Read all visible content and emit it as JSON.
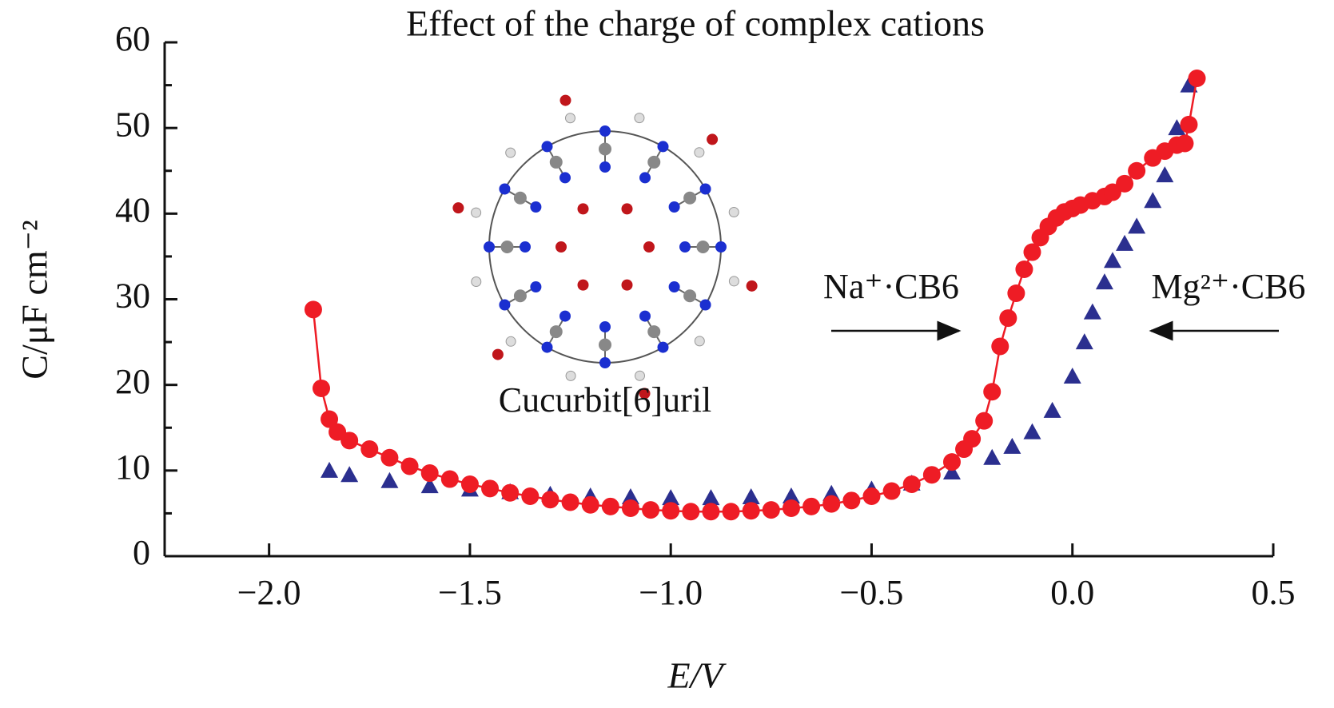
{
  "chart_data": {
    "type": "scatter",
    "title": "Effect of the charge of complex cations",
    "x_label": "E/V",
    "y_label": "C/μF cm⁻²",
    "xlim": [
      -2.26,
      0.5
    ],
    "ylim": [
      0,
      60
    ],
    "xticks": [
      {
        "value": -2,
        "label": "−2.0"
      },
      {
        "value": -1.5,
        "label": "−1.5"
      },
      {
        "value": -1,
        "label": "−1.0"
      },
      {
        "value": -0.5,
        "label": "−0.5"
      },
      {
        "value": 0,
        "label": "0.0"
      },
      0.5
    ],
    "yticks": [
      0,
      10,
      20,
      30,
      40,
      50,
      60
    ],
    "inset_caption": "Cucurbit[6]uril",
    "series": [
      {
        "name": "Mg²⁺·CB6",
        "color": "#2b2f8f",
        "marker": "triangle",
        "line": false,
        "x": [
          -1.85,
          -1.8,
          -1.7,
          -1.6,
          -1.5,
          -1.4,
          -1.3,
          -1.2,
          -1.1,
          -1.0,
          -0.9,
          -0.8,
          -0.7,
          -0.6,
          -0.5,
          -0.4,
          -0.3,
          -0.2,
          -0.15,
          -0.1,
          -0.05,
          0,
          0.03,
          0.05,
          0.08,
          0.1,
          0.13,
          0.16,
          0.2,
          0.23,
          0.26,
          0.29
        ],
        "values": [
          10,
          9.5,
          8.8,
          8.2,
          7.8,
          7.5,
          7.2,
          7,
          6.9,
          6.8,
          6.8,
          6.9,
          7,
          7.3,
          7.8,
          8.5,
          9.8,
          11.5,
          12.8,
          14.5,
          17,
          21,
          25,
          28.5,
          32,
          34.5,
          36.5,
          38.5,
          41.5,
          44.5,
          50,
          55
        ]
      },
      {
        "name": "Na⁺·CB6",
        "color": "#ee1c25",
        "marker": "circle",
        "line": true,
        "x": [
          -1.89,
          -1.87,
          -1.85,
          -1.83,
          -1.8,
          -1.75,
          -1.7,
          -1.65,
          -1.6,
          -1.55,
          -1.5,
          -1.45,
          -1.4,
          -1.35,
          -1.3,
          -1.25,
          -1.2,
          -1.15,
          -1.1,
          -1.05,
          -1.0,
          -0.95,
          -0.9,
          -0.85,
          -0.8,
          -0.75,
          -0.7,
          -0.65,
          -0.6,
          -0.55,
          -0.5,
          -0.45,
          -0.4,
          -0.35,
          -0.3,
          -0.27,
          -0.25,
          -0.22,
          -0.2,
          -0.18,
          -0.16,
          -0.14,
          -0.12,
          -0.1,
          -0.08,
          -0.06,
          -0.04,
          -0.02,
          0,
          0.02,
          0.05,
          0.08,
          0.1,
          0.13,
          0.16,
          0.2,
          0.23,
          0.26,
          0.28,
          0.29,
          0.31
        ],
        "values": [
          28.8,
          19.6,
          16,
          14.5,
          13.5,
          12.5,
          11.5,
          10.5,
          9.7,
          9,
          8.4,
          7.9,
          7.4,
          7,
          6.6,
          6.3,
          6,
          5.8,
          5.6,
          5.4,
          5.3,
          5.2,
          5.2,
          5.2,
          5.3,
          5.4,
          5.6,
          5.8,
          6.1,
          6.5,
          7,
          7.6,
          8.4,
          9.5,
          11,
          12.5,
          13.7,
          15.8,
          19.2,
          24.5,
          27.8,
          30.7,
          33.5,
          35.5,
          37.2,
          38.5,
          39.5,
          40.2,
          40.6,
          41,
          41.5,
          42,
          42.5,
          43.5,
          45,
          46.5,
          47.3,
          48,
          48.2,
          50.4,
          55.8
        ]
      }
    ]
  }
}
